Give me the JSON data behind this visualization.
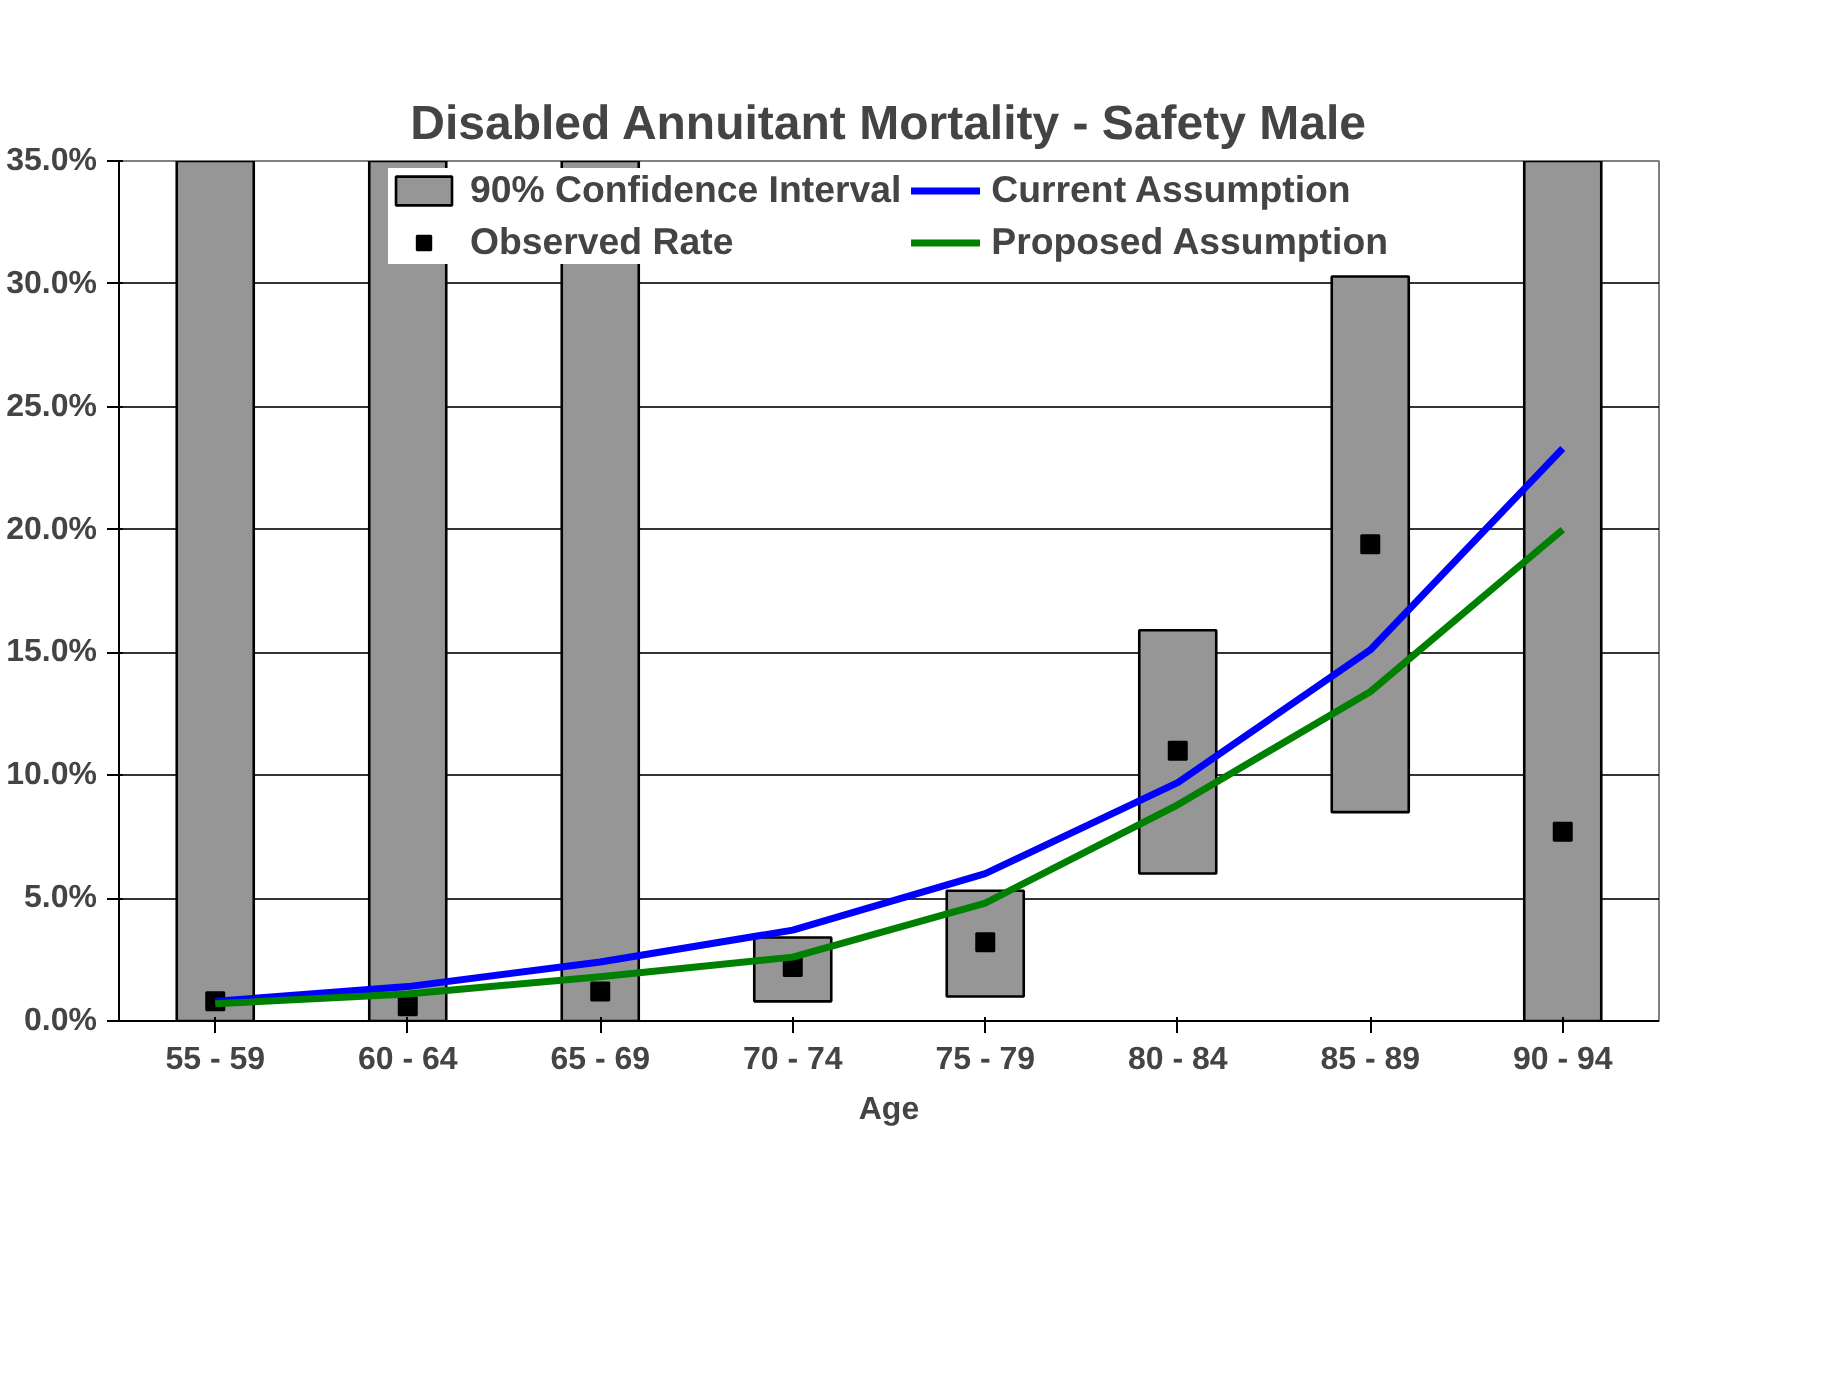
{
  "chart_data": {
    "type": "bar",
    "title": "Disabled Annuitant Mortality - Safety Male",
    "xlabel": "Age",
    "categories": [
      "55 - 59",
      "60 - 64",
      "65 - 69",
      "70 - 74",
      "75 - 79",
      "80 - 84",
      "85 - 89",
      "90 - 94"
    ],
    "ylim": [
      0,
      35
    ],
    "yticks": [
      {
        "value": 0,
        "label": "0.0%"
      },
      {
        "value": 5,
        "label": "5.0%"
      },
      {
        "value": 10,
        "label": "10.0%"
      },
      {
        "value": 15,
        "label": "15.0%"
      },
      {
        "value": 20,
        "label": "20.0%"
      },
      {
        "value": 25,
        "label": "25.0%"
      },
      {
        "value": 30,
        "label": "30.0%"
      },
      {
        "value": 35,
        "label": "35.0%"
      }
    ],
    "grid": "y",
    "legend": "top",
    "series": [
      {
        "name": "90% Confidence Interval",
        "type": "bar",
        "color": "#969696",
        "base": [
          0,
          0,
          0,
          0.8,
          1.0,
          6.0,
          8.5,
          0
        ],
        "values": [
          35,
          35,
          35,
          2.6,
          4.3,
          9.9,
          21.8,
          35
        ]
      },
      {
        "name": "Observed Rate",
        "type": "scatter",
        "marker": "square",
        "color": "#000000",
        "values": [
          0.8,
          0.6,
          1.2,
          2.2,
          3.2,
          11.0,
          19.4,
          7.7
        ]
      },
      {
        "name": "Current Assumption",
        "type": "line",
        "color": "#0000ff",
        "values": [
          0.8,
          1.4,
          2.4,
          3.7,
          6.0,
          9.7,
          15.1,
          23.3
        ]
      },
      {
        "name": "Proposed Assumption",
        "type": "line",
        "color": "#008000",
        "values": [
          0.7,
          1.1,
          1.8,
          2.6,
          4.8,
          8.8,
          13.4,
          20.0
        ]
      }
    ]
  }
}
